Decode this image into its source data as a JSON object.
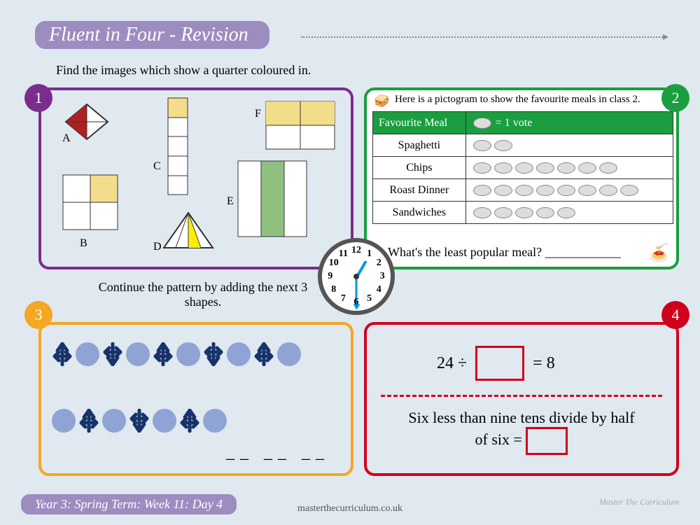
{
  "title": "Fluent in Four - Revision",
  "badges": [
    "1",
    "2",
    "3",
    "4"
  ],
  "q1": {
    "instr": "Find the images which show a quarter coloured in.",
    "labels": [
      "A",
      "B",
      "C",
      "D",
      "E",
      "F"
    ],
    "colors": {
      "fill": "#f3dd8a",
      "red": "#b02020",
      "yellow": "#ffee00",
      "stroke": "#333",
      "green": "#8fc080"
    }
  },
  "q2": {
    "header": "Here is a pictogram to show the favourite meals in class 2.",
    "col1": "Favourite Meal",
    "legend": "= 1 vote",
    "rows": [
      {
        "meal": "Spaghetti",
        "votes": 2
      },
      {
        "meal": "Chips",
        "votes": 7
      },
      {
        "meal": "Roast Dinner",
        "votes": 8
      },
      {
        "meal": "Sandwiches",
        "votes": 5
      }
    ],
    "question": "What's the least popular meal? ____________"
  },
  "q3": {
    "instr": "Continue the pattern by adding the next 3 shapes.",
    "row1_len": 10,
    "row2_len": 7,
    "circle_color": "#8fa4d4",
    "arrow_color": "#16336b"
  },
  "q4": {
    "eq": {
      "a": "24 ÷",
      "b": "= 8"
    },
    "word": "Six less than nine tens divide by half of six ="
  },
  "clock": {
    "hour_angle": 30,
    "minute_angle": 180
  },
  "footer": {
    "term": "Year 3: Spring Term: Week 11: Day 4",
    "url": "masterthecurriculum.co.uk",
    "brand": "Master The Curriculum"
  }
}
